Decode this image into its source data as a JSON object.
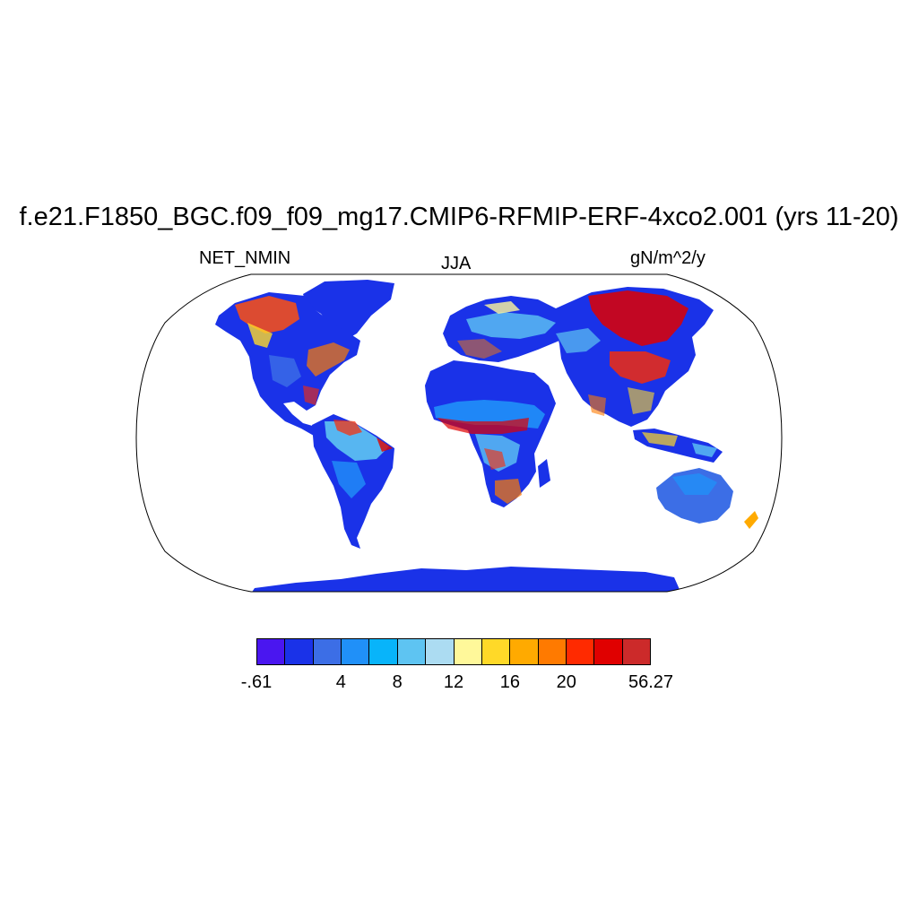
{
  "header": {
    "title": "f.e21.F1850_BGC.f09_f09_mg17.CMIP6-RFMIP-ERF-4xco2.001 (yrs 11-20)",
    "variable": "NET_NMIN",
    "season": "JJA",
    "units": "gN/m^2/y"
  },
  "map": {
    "projection": "Robinson",
    "continents": [
      "North America",
      "South America",
      "Europe",
      "Africa",
      "Asia",
      "Australia",
      "Antarctica",
      "Greenland"
    ]
  },
  "colorbar": {
    "colors": [
      "#4a16f0",
      "#1a32e8",
      "#3c6ee6",
      "#2090f8",
      "#08b4fa",
      "#5ec4f2",
      "#acdcf2",
      "#fff89a",
      "#ffd928",
      "#ffaa00",
      "#ff7a00",
      "#ff2a00",
      "#e00000",
      "#cc2a2a"
    ],
    "labels": [
      {
        "text": "-.61",
        "index": 0
      },
      {
        "text": "4",
        "index": 3
      },
      {
        "text": "8",
        "index": 5
      },
      {
        "text": "12",
        "index": 7
      },
      {
        "text": "16",
        "index": 9
      },
      {
        "text": "20",
        "index": 11
      },
      {
        "text": "56.27",
        "index": 14
      }
    ]
  }
}
